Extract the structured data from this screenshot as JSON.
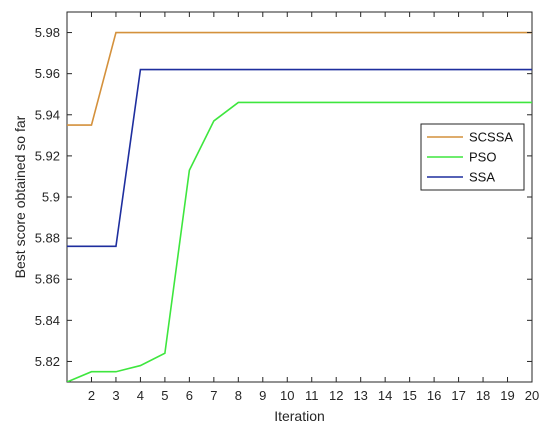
{
  "chart_data": {
    "type": "line",
    "title": "",
    "xlabel": "Iteration",
    "ylabel": "Best score obtained so far",
    "xlim": [
      1,
      20
    ],
    "ylim": [
      5.81,
      5.99
    ],
    "xticks": [
      2,
      3,
      4,
      5,
      6,
      7,
      8,
      9,
      10,
      11,
      12,
      13,
      14,
      15,
      16,
      17,
      18,
      19,
      20
    ],
    "yticks": [
      5.82,
      5.84,
      5.86,
      5.88,
      5.9,
      5.92,
      5.94,
      5.96,
      5.98
    ],
    "ytick_labels": [
      "5.82",
      "5.84",
      "5.86",
      "5.88",
      "5.9",
      "5.92",
      "5.94",
      "5.96",
      "5.98"
    ],
    "grid": false,
    "legend_position": "right",
    "x": [
      1,
      2,
      3,
      4,
      5,
      6,
      7,
      8,
      9,
      10,
      11,
      12,
      13,
      14,
      15,
      16,
      17,
      18,
      19,
      20
    ],
    "series": [
      {
        "name": "SCSSA",
        "color": "#d4913c",
        "values": [
          5.935,
          5.935,
          5.98,
          5.98,
          5.98,
          5.98,
          5.98,
          5.98,
          5.98,
          5.98,
          5.98,
          5.98,
          5.98,
          5.98,
          5.98,
          5.98,
          5.98,
          5.98,
          5.98,
          5.98
        ]
      },
      {
        "name": "PSO",
        "color": "#3ee63e",
        "values": [
          5.81,
          5.815,
          5.815,
          5.818,
          5.824,
          5.913,
          5.937,
          5.946,
          5.946,
          5.946,
          5.946,
          5.946,
          5.946,
          5.946,
          5.946,
          5.946,
          5.946,
          5.946,
          5.946,
          5.946
        ]
      },
      {
        "name": "SSA",
        "color": "#1e2e9e",
        "values": [
          5.876,
          5.876,
          5.876,
          5.962,
          5.962,
          5.962,
          5.962,
          5.962,
          5.962,
          5.962,
          5.962,
          5.962,
          5.962,
          5.962,
          5.962,
          5.962,
          5.962,
          5.962,
          5.962,
          5.962
        ]
      }
    ]
  }
}
